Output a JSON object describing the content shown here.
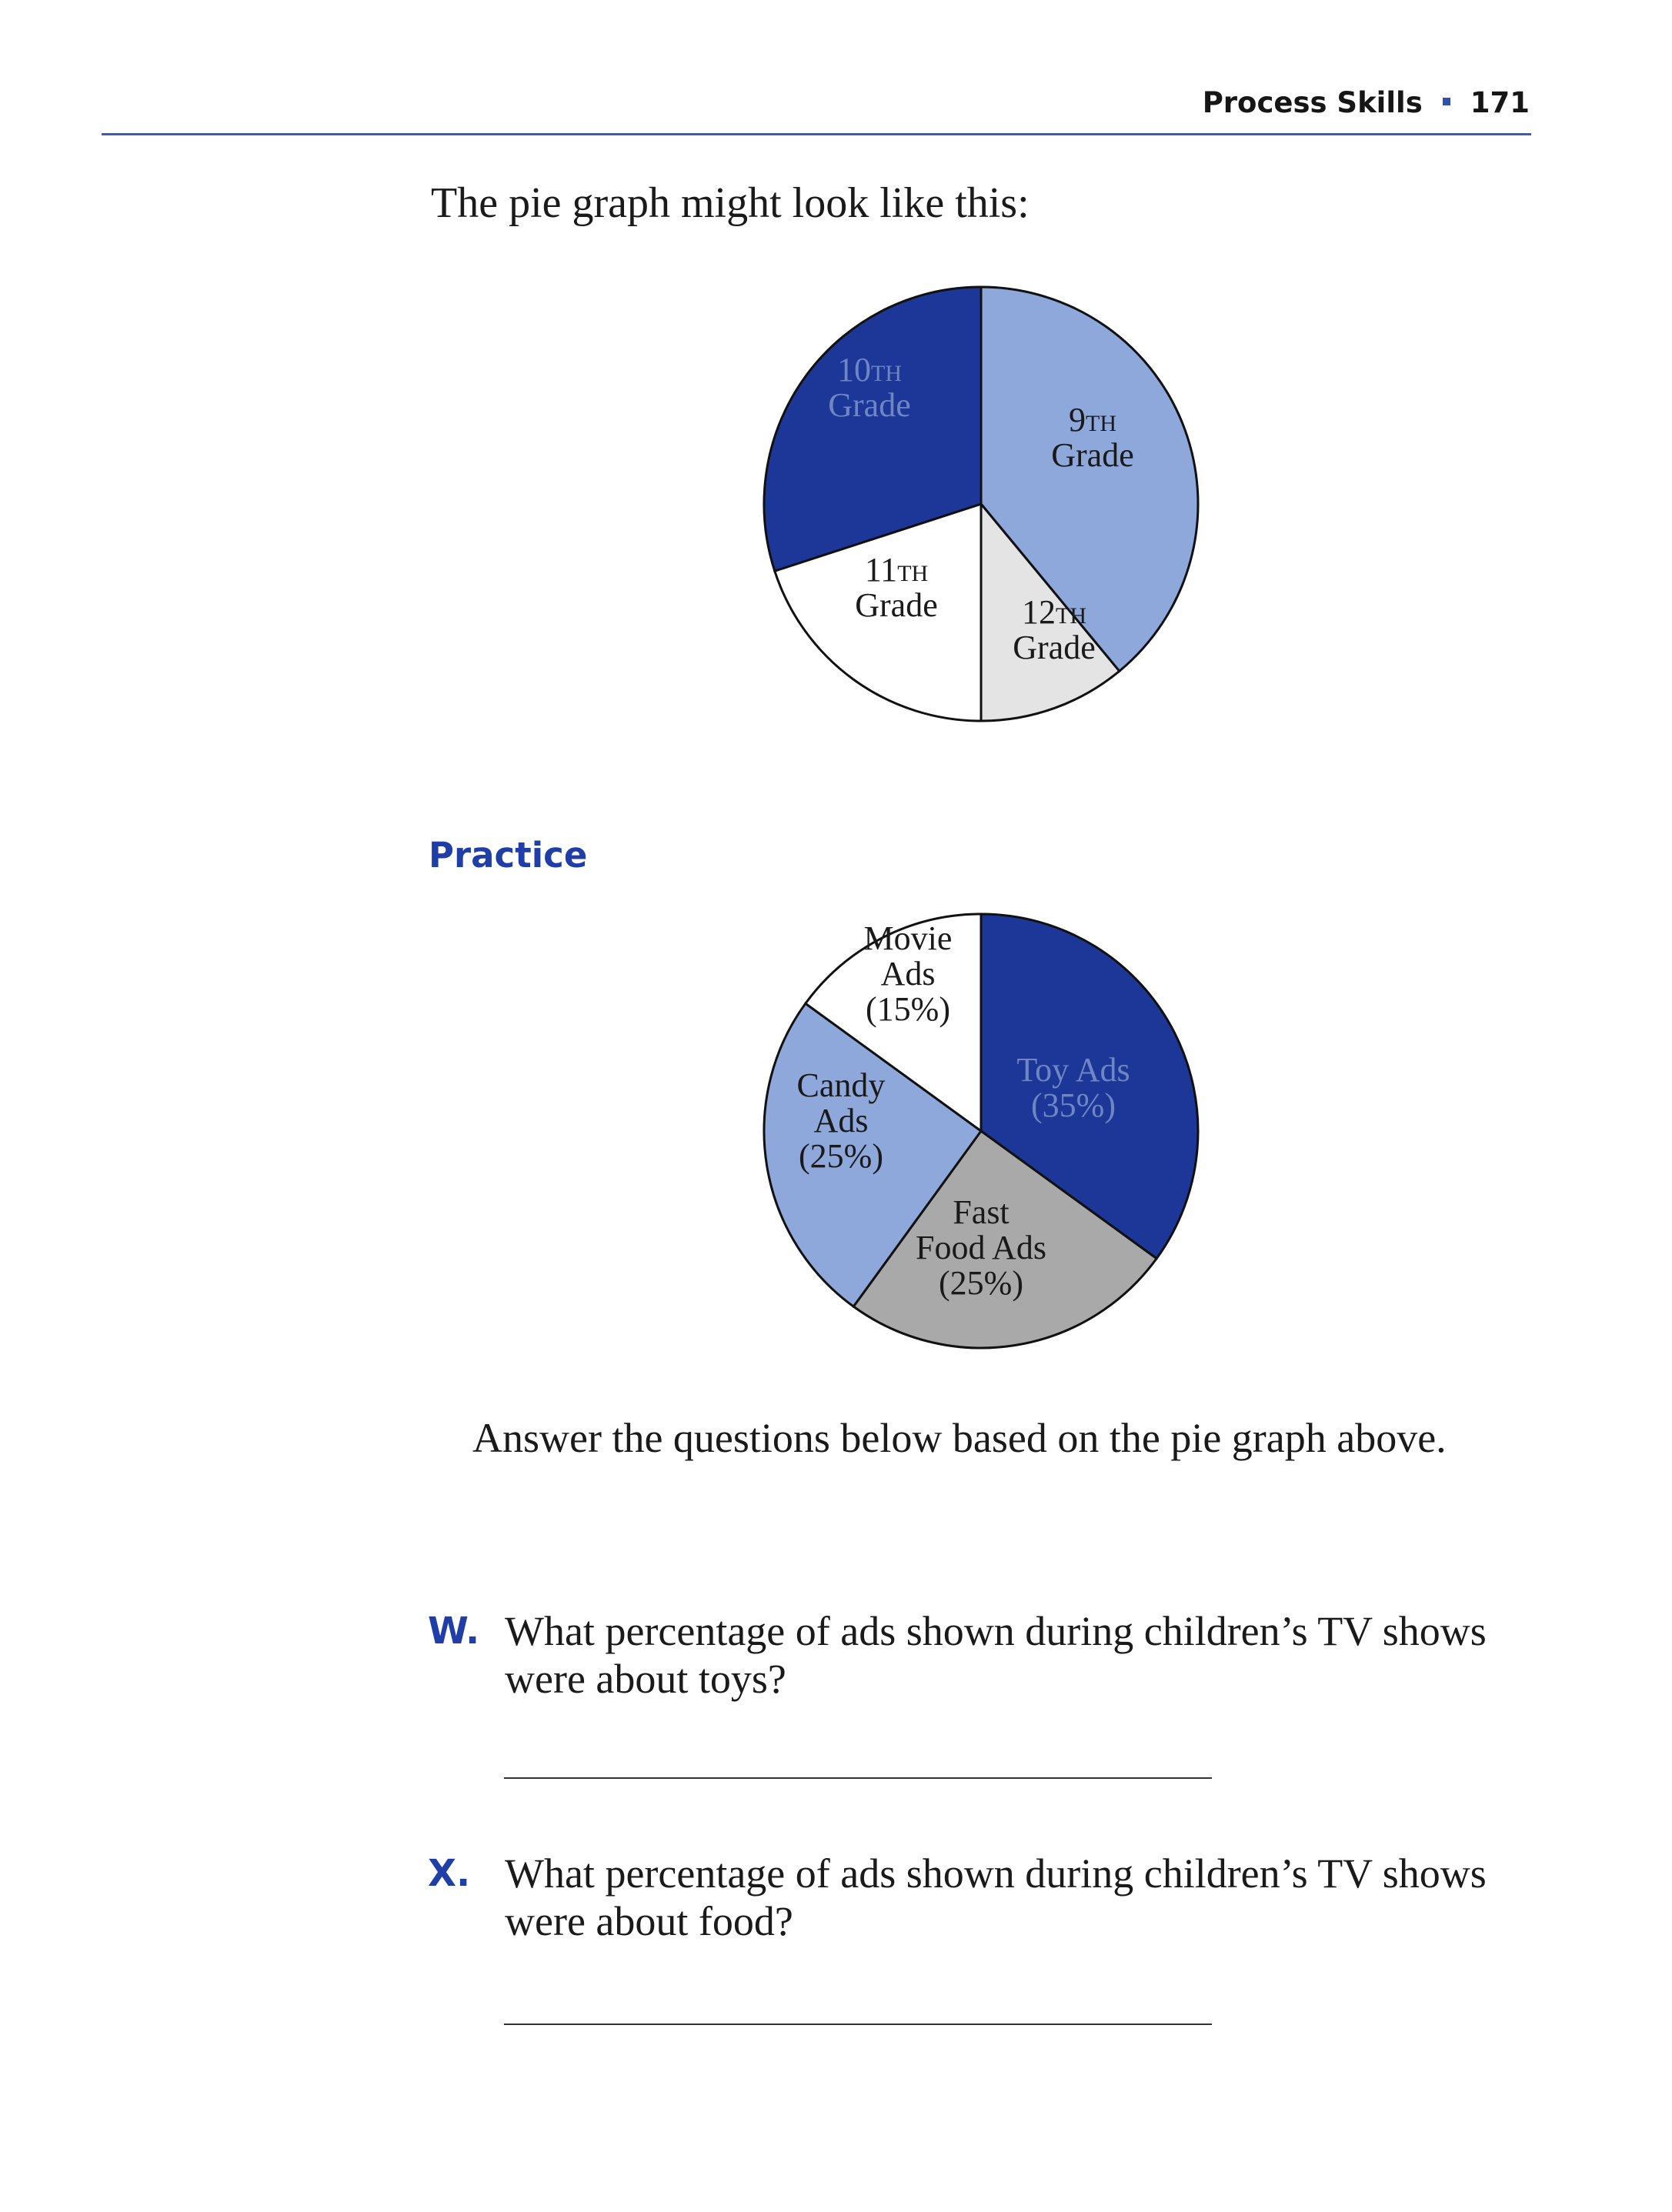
{
  "header": {
    "section": "Process Skills",
    "page_number": "171"
  },
  "intro_text": "The pie graph might look like this:",
  "practice_heading": "Practice",
  "answer_intro": "Answer the questions below based on the pie graph above.",
  "questions": [
    {
      "letter": "W.",
      "text": "What percentage of ads shown during children’s TV shows were about toys?"
    },
    {
      "letter": "X.",
      "text": "What percentage of ads shown during children’s TV shows were about food?"
    }
  ],
  "chart_data": [
    {
      "type": "pie",
      "slices": [
        {
          "num": "9",
          "sup": "TH",
          "line2": "Grade",
          "value": 39,
          "color": "#8fa8dc",
          "text_color": "#1a1a1a"
        },
        {
          "num": "12",
          "sup": "TH",
          "line2": "Grade",
          "value": 11,
          "color": "#e4e4e4",
          "text_color": "#1a1a1a"
        },
        {
          "num": "11",
          "sup": "TH",
          "line2": "Grade",
          "value": 20,
          "color": "#ffffff",
          "text_color": "#1a1a1a"
        },
        {
          "num": "10",
          "sup": "TH",
          "line2": "Grade",
          "value": 30,
          "color": "#1c3797",
          "text_color": "#6f86c4"
        }
      ]
    },
    {
      "type": "pie",
      "slices": [
        {
          "lines": [
            "Toy Ads",
            "(35%)"
          ],
          "value": 35,
          "color": "#1c3797",
          "text_color": "#6f86c4"
        },
        {
          "lines": [
            "Fast",
            "Food Ads",
            "(25%)"
          ],
          "value": 25,
          "color": "#a9a9a9",
          "text_color": "#1a1a1a"
        },
        {
          "lines": [
            "Candy",
            "Ads",
            "(25%)"
          ],
          "value": 25,
          "color": "#8fa8dc",
          "text_color": "#1a1a1a"
        },
        {
          "lines": [
            "Movie",
            "Ads",
            "(15%)"
          ],
          "value": 15,
          "color": "#ffffff",
          "text_color": "#1a1a1a"
        }
      ]
    }
  ]
}
